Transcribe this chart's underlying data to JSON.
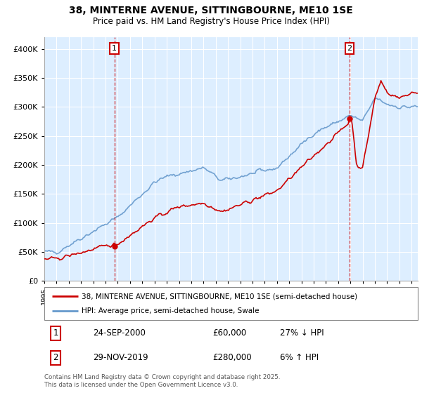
{
  "title": "38, MINTERNE AVENUE, SITTINGBOURNE, ME10 1SE",
  "subtitle": "Price paid vs. HM Land Registry's House Price Index (HPI)",
  "legend_line1": "38, MINTERNE AVENUE, SITTINGBOURNE, ME10 1SE (semi-detached house)",
  "legend_line2": "HPI: Average price, semi-detached house, Swale",
  "annotation1_label": "1",
  "annotation1_date": "24-SEP-2000",
  "annotation1_price": "£60,000",
  "annotation1_hpi": "27% ↓ HPI",
  "annotation2_label": "2",
  "annotation2_date": "29-NOV-2019",
  "annotation2_price": "£280,000",
  "annotation2_hpi": "6% ↑ HPI",
  "footer": "Contains HM Land Registry data © Crown copyright and database right 2025.\nThis data is licensed under the Open Government Licence v3.0.",
  "ylim": [
    0,
    420000
  ],
  "xlim_start": 1995.0,
  "xlim_end": 2025.5,
  "price_line_color": "#cc0000",
  "hpi_line_color": "#6699cc",
  "annotation_line_color": "#cc0000",
  "marker1_color": "#cc0000",
  "marker2_color": "#cc0000",
  "background_color": "#ffffff",
  "plot_bg_color": "#ddeeff",
  "grid_color": "#ffffff"
}
